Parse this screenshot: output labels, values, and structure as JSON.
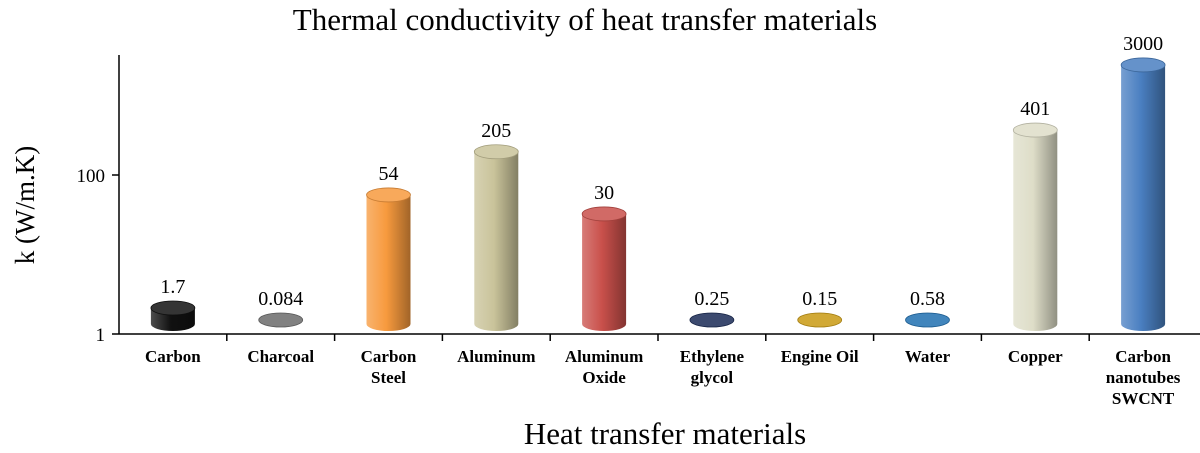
{
  "chart_data": {
    "type": "bar",
    "title": "Thermal conductivity of heat transfer materials",
    "xlabel": "Heat transfer materials",
    "ylabel": "k (W/m.K)",
    "yscale": "log",
    "ylim": [
      1,
      3000
    ],
    "yticks": [
      {
        "value": 1,
        "label": "1"
      },
      {
        "value": 100,
        "label": "100"
      }
    ],
    "grid": false,
    "bar_style": "3d-cylinder",
    "categories": [
      [
        "Carbon"
      ],
      [
        "Charcoal"
      ],
      [
        "Carbon",
        "Steel"
      ],
      [
        "Aluminum"
      ],
      [
        "Aluminum",
        "Oxide"
      ],
      [
        "Ethylene",
        "glycol"
      ],
      [
        "Engine Oil"
      ],
      [
        "Water"
      ],
      [
        "Copper"
      ],
      [
        "Carbon",
        "nanotubes",
        "SWCNT"
      ]
    ],
    "values": [
      1.7,
      0.084,
      54,
      205,
      30,
      0.25,
      0.15,
      0.58,
      401,
      3000
    ],
    "data_labels": [
      "1.7",
      "0.084",
      "54",
      "205",
      "30",
      "0.25",
      "0.15",
      "0.58",
      "401",
      "3000"
    ],
    "colors": [
      "#111111",
      "#6b6b6b",
      "#f79a3e",
      "#c9c39a",
      "#c9504b",
      "#1a2a55",
      "#c99a12",
      "#1f6fb0",
      "#deddc8",
      "#4a7fc1"
    ]
  }
}
